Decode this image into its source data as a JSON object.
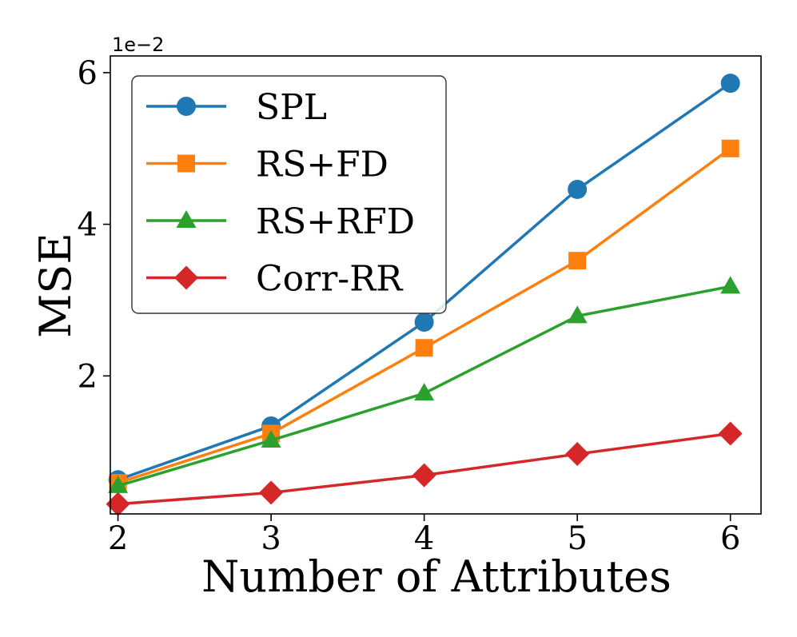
{
  "chart_data": {
    "type": "line",
    "xlabel": "Number of Attributes",
    "ylabel": "MSE",
    "offset_text": "1e−2",
    "x": [
      2,
      3,
      4,
      5,
      6
    ],
    "x_ticks": [
      "2",
      "3",
      "4",
      "5",
      "6"
    ],
    "y_ticks": [
      {
        "value": 0.02,
        "label": "2"
      },
      {
        "value": 0.04,
        "label": "4"
      },
      {
        "value": 0.06,
        "label": "6"
      }
    ],
    "xlim": [
      1.95,
      6.2
    ],
    "ylim": [
      0.0018,
      0.0622
    ],
    "legend_position": "top-left",
    "series": [
      {
        "name": "SPL",
        "color": "#1f77b4",
        "marker": "circle",
        "values": [
          0.0063,
          0.0134,
          0.0271,
          0.0446,
          0.0586
        ]
      },
      {
        "name": "RS+FD",
        "color": "#ff7f0e",
        "marker": "square",
        "values": [
          0.0059,
          0.0124,
          0.0237,
          0.0352,
          0.05
        ]
      },
      {
        "name": "RS+RFD",
        "color": "#2ca02c",
        "marker": "triangle",
        "values": [
          0.0055,
          0.0115,
          0.0177,
          0.0279,
          0.0318
        ]
      },
      {
        "name": "Corr-RR",
        "color": "#d62728",
        "marker": "diamond",
        "values": [
          0.0031,
          0.0046,
          0.0069,
          0.0097,
          0.0124
        ]
      }
    ]
  }
}
